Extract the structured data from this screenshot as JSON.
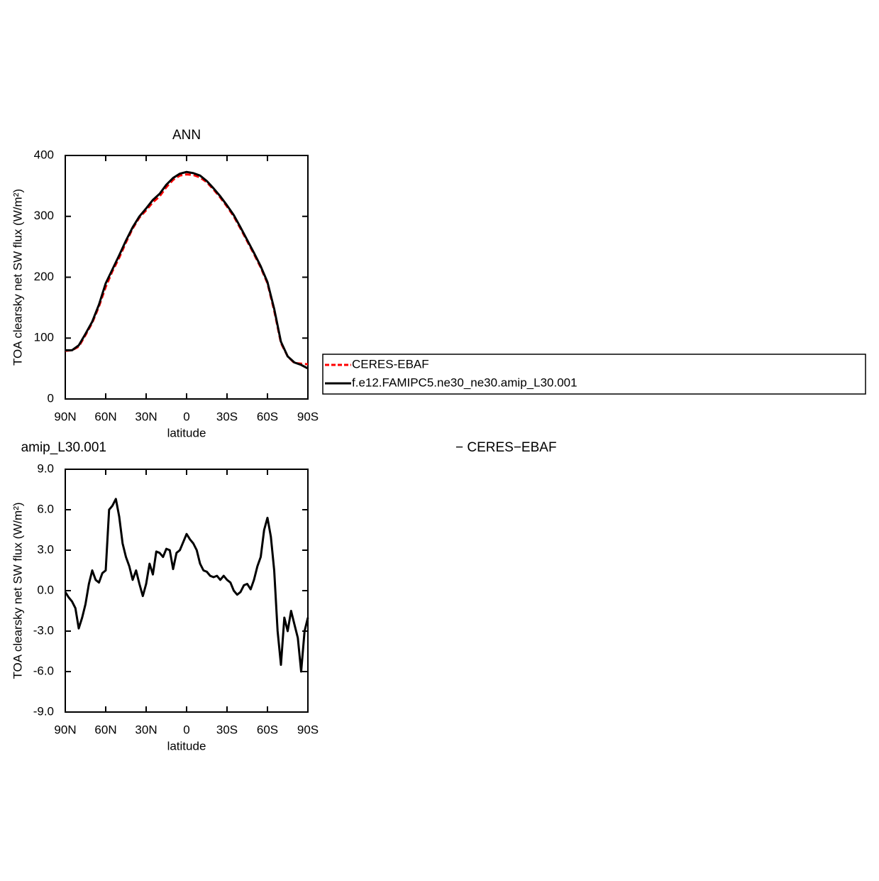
{
  "chart_data": [
    {
      "type": "line",
      "title": "ANN",
      "ylabel": "TOA clearsky net SW flux (W/m²)",
      "xlabel": "latitude",
      "x": [
        90,
        85,
        80,
        75,
        70,
        65,
        60,
        55,
        50,
        45,
        40,
        35,
        30,
        25,
        20,
        15,
        10,
        5,
        0,
        -5,
        -10,
        -15,
        -20,
        -25,
        -30,
        -35,
        -40,
        -45,
        -50,
        -55,
        -60,
        -65,
        -70,
        -75,
        -80,
        -85,
        -90
      ],
      "xlim": [
        90,
        -90
      ],
      "xticks": [
        {
          "value": 90,
          "label": "90N"
        },
        {
          "value": 60,
          "label": "60N"
        },
        {
          "value": 30,
          "label": "30N"
        },
        0,
        {
          "value": -30,
          "label": "30S"
        },
        {
          "value": -60,
          "label": "60S"
        },
        {
          "value": -90,
          "label": "90S"
        }
      ],
      "ylim": [
        0,
        400
      ],
      "yticks": [
        0,
        100,
        200,
        300,
        400
      ],
      "legend": "right",
      "series": [
        {
          "name": "CERES-EBAF",
          "color": "#ff0000",
          "linestyle": "dashed",
          "values": [
            79,
            80,
            86,
            105,
            125,
            152,
            184,
            210,
            232,
            257,
            280,
            298,
            310,
            323,
            333,
            348,
            360,
            367,
            369,
            368,
            364,
            356,
            344,
            331,
            316,
            300,
            280,
            259,
            238,
            216,
            190,
            145,
            92,
            70,
            59,
            58,
            57
          ]
        },
        {
          "name": "f.e12.FAMIPC5.ne30_ne30.amip_L30.001",
          "color": "#000000",
          "linestyle": "solid",
          "values": [
            80,
            80,
            88,
            107,
            127,
            155,
            190,
            213,
            236,
            260,
            282,
            300,
            313,
            327,
            337,
            352,
            363,
            370,
            373,
            371,
            367,
            358,
            346,
            333,
            318,
            302,
            282,
            261,
            240,
            218,
            192,
            148,
            94,
            70,
            60,
            56,
            50
          ]
        }
      ]
    },
    {
      "type": "line",
      "left_title": "amip_L30.001",
      "right_title": "− CERES−EBAF",
      "ylabel": "TOA clearsky net SW flux (W/m²)",
      "xlabel": "latitude",
      "x": [
        90,
        87.5,
        85,
        82.5,
        80,
        77.5,
        75,
        72.5,
        70,
        67.5,
        65,
        62.5,
        60,
        57.5,
        55,
        52.5,
        50,
        47.5,
        45,
        42.5,
        40,
        37.5,
        35,
        32.5,
        30,
        27.5,
        25,
        22.5,
        20,
        17.5,
        15,
        12.5,
        10,
        7.5,
        5,
        2.5,
        0,
        -2.5,
        -5,
        -7.5,
        -10,
        -12.5,
        -15,
        -17.5,
        -20,
        -22.5,
        -25,
        -27.5,
        -30,
        -32.5,
        -35,
        -37.5,
        -40,
        -42.5,
        -45,
        -47.5,
        -50,
        -52.5,
        -55,
        -57.5,
        -60,
        -62.5,
        -65,
        -67.5,
        -70,
        -72.5,
        -75,
        -77.5,
        -80,
        -82.5,
        -85,
        -87.5,
        -90
      ],
      "xlim": [
        90,
        -90
      ],
      "xticks": [
        {
          "value": 90,
          "label": "90N"
        },
        {
          "value": 60,
          "label": "60N"
        },
        {
          "value": 30,
          "label": "30N"
        },
        0,
        {
          "value": -30,
          "label": "30S"
        },
        {
          "value": -60,
          "label": "60S"
        },
        {
          "value": -90,
          "label": "90S"
        }
      ],
      "ylim": [
        -9,
        9
      ],
      "yticks": [
        {
          "value": -9,
          "label": "-9.0"
        },
        {
          "value": -6,
          "label": "-6.0"
        },
        {
          "value": -3,
          "label": "-3.0"
        },
        {
          "value": 0,
          "label": "0.0"
        },
        {
          "value": 3,
          "label": "3.0"
        },
        {
          "value": 6,
          "label": "6.0"
        },
        {
          "value": 9,
          "label": "9.0"
        }
      ],
      "series": [
        {
          "color": "#000000",
          "linestyle": "solid",
          "values": [
            -0.1,
            -0.5,
            -0.8,
            -1.3,
            -2.8,
            -2.0,
            -1.0,
            0.5,
            1.5,
            0.8,
            0.6,
            1.3,
            1.5,
            6.0,
            6.3,
            6.8,
            5.5,
            3.5,
            2.5,
            1.8,
            0.8,
            1.5,
            0.5,
            -0.4,
            0.5,
            2.0,
            1.2,
            2.9,
            2.8,
            2.5,
            3.1,
            3.0,
            1.6,
            2.8,
            3.0,
            3.6,
            4.2,
            3.8,
            3.5,
            3.0,
            2.0,
            1.5,
            1.4,
            1.1,
            1.0,
            1.1,
            0.8,
            1.1,
            0.8,
            0.6,
            0.0,
            -0.3,
            -0.1,
            0.4,
            0.5,
            0.1,
            0.8,
            1.8,
            2.5,
            4.5,
            5.4,
            4.0,
            1.5,
            -3.0,
            -5.5,
            -2.0,
            -3.0,
            -1.5,
            -2.5,
            -3.5,
            -6.0,
            -3.0,
            -2.0
          ]
        }
      ]
    }
  ]
}
